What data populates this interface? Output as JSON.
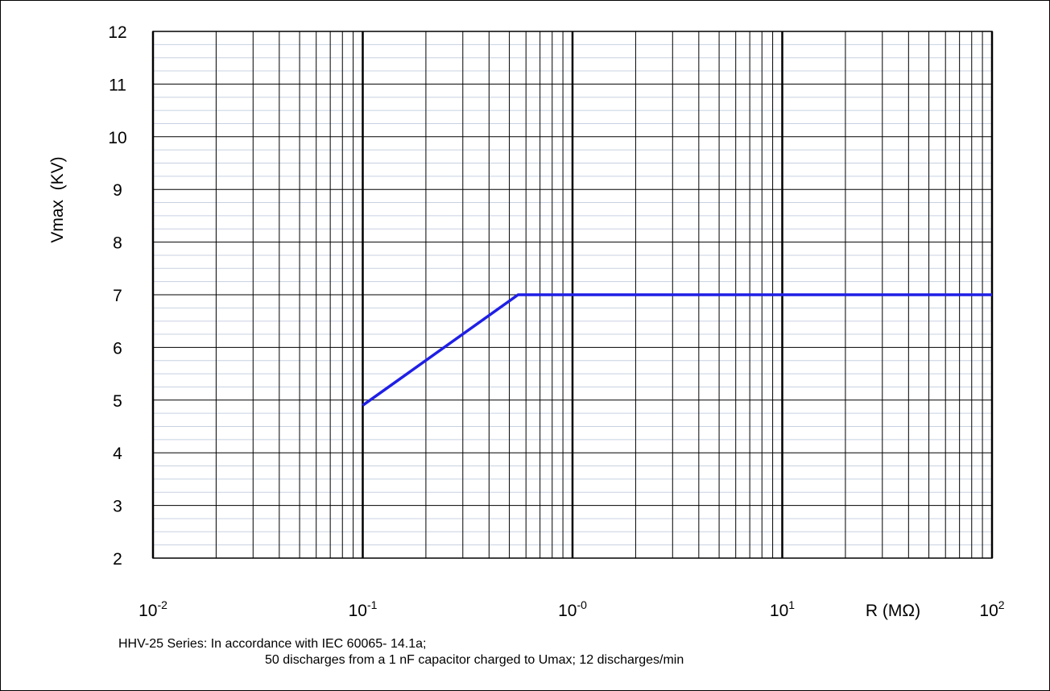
{
  "chart_data": {
    "type": "line",
    "xscale": "log",
    "xlim": [
      0.01,
      100
    ],
    "ylim": [
      2,
      12
    ],
    "ylabel": "Vmax  (KV)",
    "xlabel": "R (MΩ)",
    "y_ticks": [
      "2",
      "3",
      "4",
      "5",
      "6",
      "7",
      "8",
      "9",
      "10",
      "11",
      "12"
    ],
    "x_ticks": [
      {
        "value": 0.01,
        "base": "10",
        "exp": "-2"
      },
      {
        "value": 0.1,
        "base": "10",
        "exp": "-1"
      },
      {
        "value": 1,
        "base": "10",
        "exp": "-0"
      },
      {
        "value": 10,
        "base": "10",
        "exp": "1"
      },
      {
        "value": 100,
        "base": "10",
        "exp": "2"
      }
    ],
    "grid": true,
    "series": [
      {
        "color": "#1f1fe6",
        "x": [
          0.1,
          0.55,
          100
        ],
        "y": [
          4.9,
          7.0,
          7.0
        ]
      }
    ]
  },
  "note": {
    "line1": "HHV-25 Series: In accordance with IEC 60065- 14.1a;",
    "line2": "50 discharges from a 1 nF capacitor charged to Umax; 12 discharges/min"
  }
}
